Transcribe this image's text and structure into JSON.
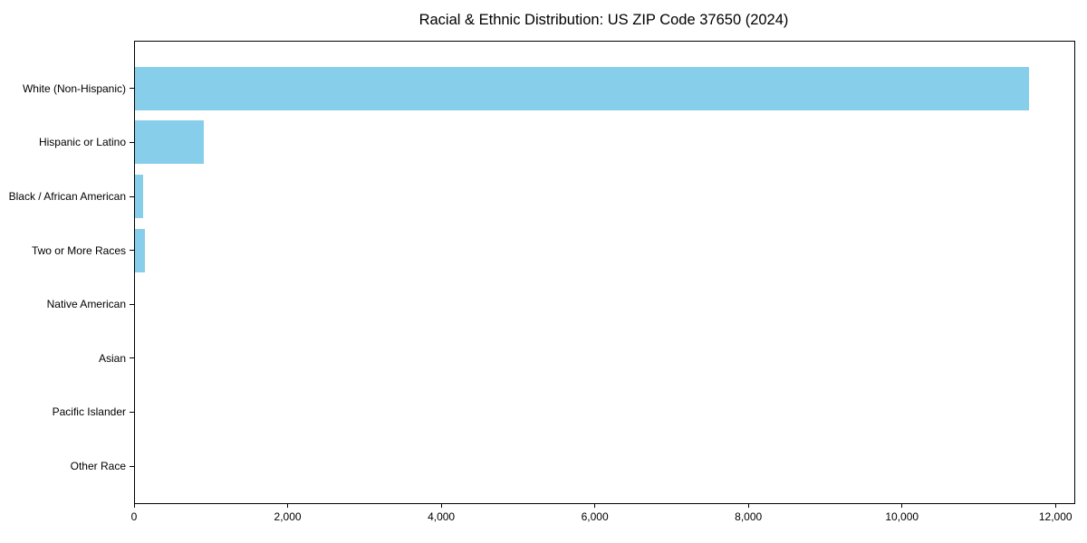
{
  "chart_data": {
    "type": "bar",
    "orientation": "horizontal",
    "title": "Racial & Ethnic Distribution: US ZIP Code 37650 (2024)",
    "categories": [
      "White (Non-Hispanic)",
      "Hispanic or Latino",
      "Black / African American",
      "Two or More Races",
      "Native American",
      "Asian",
      "Pacific Islander",
      "Other Race"
    ],
    "values": [
      11650,
      910,
      120,
      140,
      0,
      0,
      0,
      0
    ],
    "xlabel": "",
    "ylabel": "",
    "xlim": [
      0,
      12233
    ],
    "x_ticks": [
      0,
      2000,
      4000,
      6000,
      8000,
      10000,
      12000
    ],
    "x_tick_labels": [
      "0",
      "2,000",
      "4,000",
      "6,000",
      "8,000",
      "10,000",
      "12,000"
    ],
    "grid": false,
    "legend": null,
    "bar_color": "#87CEEB",
    "frame_color": "#000000",
    "text_color": "#000000",
    "background_color": "#ffffff"
  }
}
